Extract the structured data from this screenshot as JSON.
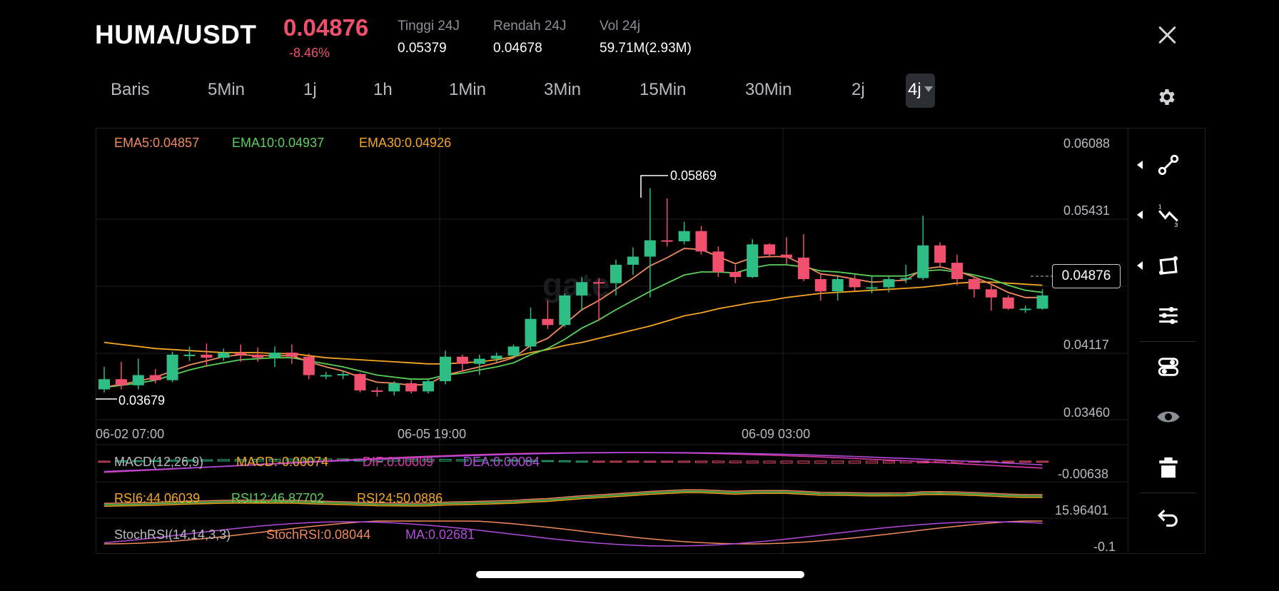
{
  "header": {
    "pair": "HUMA/USDT",
    "price": "0.04876",
    "change": "-8.46%",
    "stats": [
      {
        "label": "Tinggi 24J",
        "value": "0.05379"
      },
      {
        "label": "Rendah 24J",
        "value": "0.04678"
      },
      {
        "label": "Vol 24j",
        "value": "59.71M(2.93M)"
      }
    ]
  },
  "timeframes": [
    "Baris",
    "5Min",
    "1j",
    "1h",
    "1Min",
    "3Min",
    "15Min",
    "30Min",
    "2j"
  ],
  "active_timeframe": "4j",
  "ema_legend": {
    "ema5": "EMA5:0.04857",
    "ema10": "EMA10:0.04937",
    "ema30": "EMA30:0.04926"
  },
  "main_chart": {
    "y_labels": [
      "0.06088",
      "0.05431",
      "0.04117",
      "0.03460"
    ],
    "x_labels": [
      "06-02 07:00",
      "06-05 19:00",
      "06-09 03:00"
    ],
    "high_marker": "0.05869",
    "low_marker": "0.03679",
    "current_price_tag": "0.04876",
    "watermark": "gate"
  },
  "macd": {
    "legend": "MACD(12,26,9)",
    "macd": "MACD:-0.00074",
    "dif": "DIF:0.00009",
    "dea": "DEA:0.00084",
    "axis": "-0.00638"
  },
  "rsi": {
    "rsi6": "RSI6:44.06039",
    "rsi12": "RSI12:46.87702",
    "rsi24": "RSI24:50.0886",
    "axis": "15.96401"
  },
  "stochrsi": {
    "legend": "StochRSI(14,14,3,3)",
    "value": "StochRSI:0.08044",
    "ma": "MA:0.02681",
    "axis": "-0.1"
  },
  "tools": [
    "line-tool-icon",
    "polyline-tool-icon",
    "shape-tool-icon",
    "indicator-settings-icon",
    "indicator-toggle-icon",
    "eye-icon",
    "trash-icon",
    "undo-icon"
  ],
  "colors": {
    "up": "#2ebd85",
    "down": "#f0506e",
    "ema5": "#f08a5d",
    "ema10": "#5ad05a",
    "ema30": "#f5a623",
    "purple": "#b14cdb",
    "magenta": "#d63aa8"
  },
  "chart_data": {
    "type": "candlestick",
    "x_labels": [
      "06-02 07:00",
      "06-05 19:00",
      "06-09 03:00"
    ],
    "ylim": [
      0.0346,
      0.06088
    ],
    "candles": [
      [
        0.0368,
        0.0378,
        0.039,
        0.0365
      ],
      [
        0.0378,
        0.0372,
        0.0395,
        0.0368
      ],
      [
        0.0372,
        0.0382,
        0.0398,
        0.0368
      ],
      [
        0.0382,
        0.0377,
        0.0388,
        0.0374
      ],
      [
        0.0377,
        0.0402,
        0.0405,
        0.0375
      ],
      [
        0.0402,
        0.0402,
        0.041,
        0.0396
      ],
      [
        0.0402,
        0.0399,
        0.0413,
        0.039
      ],
      [
        0.0399,
        0.0404,
        0.0408,
        0.0396
      ],
      [
        0.0404,
        0.0402,
        0.0412,
        0.0395
      ],
      [
        0.0402,
        0.0399,
        0.0409,
        0.0395
      ],
      [
        0.0399,
        0.0404,
        0.041,
        0.039
      ],
      [
        0.0404,
        0.04,
        0.0412,
        0.0393
      ],
      [
        0.04,
        0.0382,
        0.0403,
        0.0378
      ],
      [
        0.0382,
        0.0382,
        0.0385,
        0.0378
      ],
      [
        0.0382,
        0.0383,
        0.0386,
        0.0378
      ],
      [
        0.0383,
        0.0367,
        0.0384,
        0.0365
      ],
      [
        0.0367,
        0.0366,
        0.037,
        0.0361
      ],
      [
        0.0366,
        0.0374,
        0.0376,
        0.0362
      ],
      [
        0.0374,
        0.0366,
        0.0377,
        0.0364
      ],
      [
        0.0366,
        0.0376,
        0.0378,
        0.0364
      ],
      [
        0.0376,
        0.04,
        0.0406,
        0.0373
      ],
      [
        0.04,
        0.0393,
        0.0402,
        0.0385
      ],
      [
        0.0393,
        0.0398,
        0.0402,
        0.0382
      ],
      [
        0.0398,
        0.0401,
        0.0404,
        0.0395
      ],
      [
        0.0401,
        0.041,
        0.0412,
        0.0399
      ],
      [
        0.041,
        0.0437,
        0.0448,
        0.0406
      ],
      [
        0.0437,
        0.0431,
        0.0455,
        0.0427
      ],
      [
        0.0431,
        0.046,
        0.0462,
        0.0429
      ],
      [
        0.046,
        0.0473,
        0.0478,
        0.0445
      ],
      [
        0.0473,
        0.0472,
        0.0477,
        0.0435
      ],
      [
        0.0472,
        0.049,
        0.0495,
        0.046
      ],
      [
        0.049,
        0.0498,
        0.0507,
        0.048
      ],
      [
        0.0498,
        0.0514,
        0.0565,
        0.0458
      ],
      [
        0.0514,
        0.0513,
        0.0555,
        0.0508
      ],
      [
        0.0513,
        0.0523,
        0.0532,
        0.051
      ],
      [
        0.0523,
        0.0503,
        0.0528,
        0.05
      ],
      [
        0.0503,
        0.0483,
        0.0508,
        0.0478
      ],
      [
        0.0483,
        0.0478,
        0.049,
        0.0472
      ],
      [
        0.0478,
        0.051,
        0.0515,
        0.0477
      ],
      [
        0.051,
        0.05,
        0.0511,
        0.0497
      ],
      [
        0.05,
        0.0497,
        0.0517,
        0.049
      ],
      [
        0.0497,
        0.0476,
        0.052,
        0.0474
      ],
      [
        0.0476,
        0.0464,
        0.0482,
        0.0455
      ],
      [
        0.0464,
        0.0476,
        0.048,
        0.0455
      ],
      [
        0.0476,
        0.0468,
        0.048,
        0.0464
      ],
      [
        0.0468,
        0.0468,
        0.0479,
        0.0462
      ],
      [
        0.0468,
        0.0476,
        0.0479,
        0.0463
      ],
      [
        0.0476,
        0.0477,
        0.049,
        0.0472
      ],
      [
        0.0477,
        0.0509,
        0.0538,
        0.0475
      ],
      [
        0.0509,
        0.0492,
        0.0512,
        0.0488
      ],
      [
        0.0492,
        0.0476,
        0.05,
        0.047
      ],
      [
        0.0476,
        0.0466,
        0.0478,
        0.0458
      ],
      [
        0.0466,
        0.0458,
        0.047,
        0.0445
      ],
      [
        0.0458,
        0.0447,
        0.046,
        0.0446
      ],
      [
        0.0447,
        0.0447,
        0.045,
        0.0443
      ],
      [
        0.0447,
        0.046,
        0.0466,
        0.0446
      ]
    ],
    "ema5": [
      0.037,
      0.0373,
      0.0376,
      0.038,
      0.0386,
      0.0392,
      0.0396,
      0.04,
      0.0402,
      0.0401,
      0.0401,
      0.0401,
      0.0395,
      0.039,
      0.0386,
      0.038,
      0.0375,
      0.0374,
      0.0372,
      0.0373,
      0.0382,
      0.0386,
      0.039,
      0.0394,
      0.0399,
      0.0411,
      0.0418,
      0.0432,
      0.0446,
      0.0455,
      0.0466,
      0.0477,
      0.0489,
      0.0497,
      0.0506,
      0.0505,
      0.0498,
      0.0491,
      0.0497,
      0.0498,
      0.0498,
      0.049,
      0.0481,
      0.0479,
      0.0476,
      0.0473,
      0.0474,
      0.0475,
      0.0486,
      0.0488,
      0.0484,
      0.0478,
      0.0471,
      0.0463,
      0.0458,
      0.0458
    ],
    "ema10": [
      0.037,
      0.0372,
      0.0374,
      0.0377,
      0.0382,
      0.0387,
      0.0391,
      0.0394,
      0.0397,
      0.0398,
      0.0399,
      0.0399,
      0.0396,
      0.0393,
      0.039,
      0.0386,
      0.0382,
      0.038,
      0.0378,
      0.0378,
      0.0382,
      0.0384,
      0.0387,
      0.039,
      0.0394,
      0.0402,
      0.0408,
      0.0417,
      0.0428,
      0.0436,
      0.0446,
      0.0455,
      0.0464,
      0.0472,
      0.048,
      0.0483,
      0.0483,
      0.0482,
      0.0487,
      0.049,
      0.049,
      0.0488,
      0.0484,
      0.0483,
      0.0481,
      0.0479,
      0.0479,
      0.0479,
      0.0484,
      0.0485,
      0.0483,
      0.048,
      0.0476,
      0.047,
      0.0465,
      0.0463
    ],
    "ema30": [
      0.0414,
      0.0412,
      0.041,
      0.0408,
      0.0407,
      0.0406,
      0.0405,
      0.0404,
      0.0404,
      0.0404,
      0.0403,
      0.0403,
      0.0401,
      0.0399,
      0.0398,
      0.0397,
      0.0396,
      0.0395,
      0.0394,
      0.0393,
      0.0393,
      0.0394,
      0.0395,
      0.0397,
      0.04,
      0.0404,
      0.0407,
      0.0411,
      0.0414,
      0.0418,
      0.0422,
      0.0426,
      0.043,
      0.0435,
      0.044,
      0.0443,
      0.0447,
      0.045,
      0.0453,
      0.0455,
      0.0458,
      0.046,
      0.0462,
      0.0463,
      0.0464,
      0.0465,
      0.0466,
      0.0467,
      0.0468,
      0.047,
      0.0472,
      0.0473,
      0.0473,
      0.0472,
      0.0471,
      0.047
    ]
  }
}
